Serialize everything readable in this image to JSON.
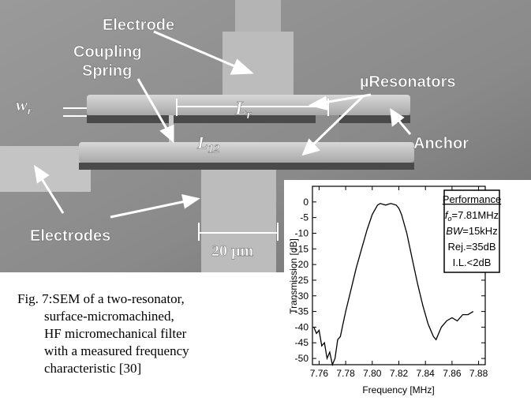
{
  "image_labels": {
    "electrode": "Electrode",
    "coupling_spring": [
      "Coupling",
      "Spring"
    ],
    "resonators": "µResonators",
    "anchor": "Anchor",
    "electrodes": "Electrodes",
    "scale_bar": "20 µm",
    "lr": {
      "sym": "L",
      "sub": "r"
    },
    "l12": {
      "sym": "L",
      "sub": "12"
    },
    "wr": {
      "sym": "w",
      "sub": "r"
    }
  },
  "caption": [
    "Fig. 7:SEM of a two-resonator,",
    "surface-micromachined,",
    "HF micromechanical filter",
    "with a measured frequency",
    "characteristic [30]"
  ],
  "chart_data": {
    "type": "line",
    "xlabel": "Frequency [MHz]",
    "ylabel": "Transmission [dB]",
    "color": "#000000",
    "x": [
      7.756,
      7.758,
      7.76,
      7.762,
      7.764,
      7.766,
      7.768,
      7.77,
      7.772,
      7.774,
      7.776,
      7.778,
      7.78,
      7.784,
      7.788,
      7.792,
      7.796,
      7.8,
      7.804,
      7.806,
      7.81,
      7.814,
      7.818,
      7.82,
      7.822,
      7.826,
      7.83,
      7.834,
      7.838,
      7.842,
      7.846,
      7.848,
      7.85,
      7.852,
      7.856,
      7.86,
      7.864,
      7.868,
      7.872,
      7.876
    ],
    "values": [
      -40,
      -42,
      -41,
      -46,
      -45,
      -50,
      -48,
      -52,
      -50,
      -44,
      -43,
      -39,
      -35,
      -28,
      -21,
      -15,
      -9,
      -4,
      -1,
      -0.5,
      -1,
      -0.5,
      -1,
      -2,
      -4,
      -10,
      -18,
      -26,
      -33,
      -39,
      -43,
      -44,
      -42,
      -40,
      -38,
      -37,
      -38,
      -36,
      -36,
      -35
    ],
    "xlim": [
      7.755,
      7.885
    ],
    "ylim": [
      -52,
      5
    ],
    "xticks": [
      7.76,
      7.78,
      {
        "value": 7.8,
        "label": "7.80"
      },
      7.82,
      7.84,
      7.86,
      7.88
    ],
    "yticks": [
      0,
      -5,
      -10,
      -15,
      -20,
      -25,
      -30,
      -35,
      -40,
      -45,
      -50
    ],
    "annotation": {
      "title": "Performance",
      "lines": [
        {
          "sym": "f",
          "sub": "o",
          "text": "=7.81MHz"
        },
        {
          "sym": "BW",
          "text": "=15kHz"
        },
        {
          "text": "Rej.=35dB"
        },
        {
          "text": "I.L.<2dB"
        }
      ]
    }
  }
}
